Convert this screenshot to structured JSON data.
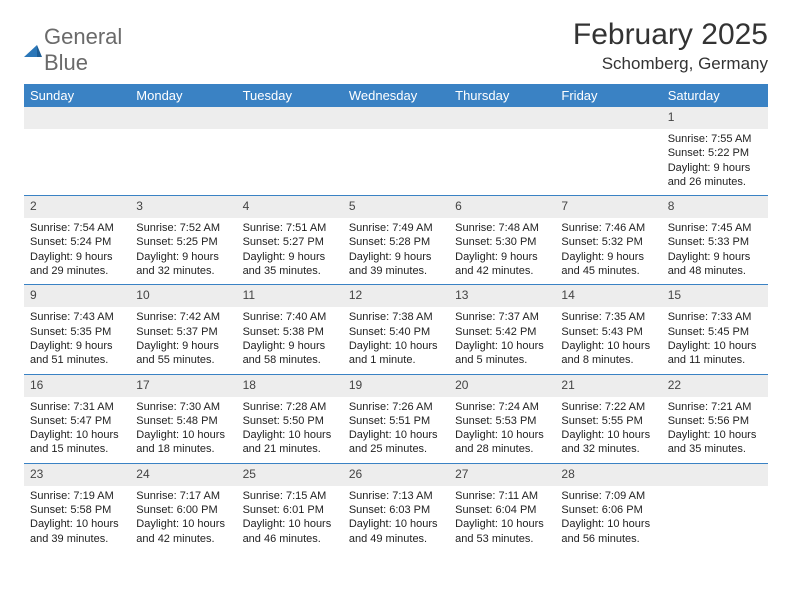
{
  "logo": {
    "text_general": "General",
    "text_blue": "Blue",
    "triangle_color": "#2a76b8"
  },
  "title": "February 2025",
  "subtitle": "Schomberg, Germany",
  "header_bg": "#3a82c4",
  "daynum_bg": "#ededed",
  "border_color": "#3a82c4",
  "days_of_week": [
    "Sunday",
    "Monday",
    "Tuesday",
    "Wednesday",
    "Thursday",
    "Friday",
    "Saturday"
  ],
  "weeks": [
    [
      null,
      null,
      null,
      null,
      null,
      null,
      {
        "n": "1",
        "sr": "Sunrise: 7:55 AM",
        "ss": "Sunset: 5:22 PM",
        "dl": "Daylight: 9 hours and 26 minutes."
      }
    ],
    [
      {
        "n": "2",
        "sr": "Sunrise: 7:54 AM",
        "ss": "Sunset: 5:24 PM",
        "dl": "Daylight: 9 hours and 29 minutes."
      },
      {
        "n": "3",
        "sr": "Sunrise: 7:52 AM",
        "ss": "Sunset: 5:25 PM",
        "dl": "Daylight: 9 hours and 32 minutes."
      },
      {
        "n": "4",
        "sr": "Sunrise: 7:51 AM",
        "ss": "Sunset: 5:27 PM",
        "dl": "Daylight: 9 hours and 35 minutes."
      },
      {
        "n": "5",
        "sr": "Sunrise: 7:49 AM",
        "ss": "Sunset: 5:28 PM",
        "dl": "Daylight: 9 hours and 39 minutes."
      },
      {
        "n": "6",
        "sr": "Sunrise: 7:48 AM",
        "ss": "Sunset: 5:30 PM",
        "dl": "Daylight: 9 hours and 42 minutes."
      },
      {
        "n": "7",
        "sr": "Sunrise: 7:46 AM",
        "ss": "Sunset: 5:32 PM",
        "dl": "Daylight: 9 hours and 45 minutes."
      },
      {
        "n": "8",
        "sr": "Sunrise: 7:45 AM",
        "ss": "Sunset: 5:33 PM",
        "dl": "Daylight: 9 hours and 48 minutes."
      }
    ],
    [
      {
        "n": "9",
        "sr": "Sunrise: 7:43 AM",
        "ss": "Sunset: 5:35 PM",
        "dl": "Daylight: 9 hours and 51 minutes."
      },
      {
        "n": "10",
        "sr": "Sunrise: 7:42 AM",
        "ss": "Sunset: 5:37 PM",
        "dl": "Daylight: 9 hours and 55 minutes."
      },
      {
        "n": "11",
        "sr": "Sunrise: 7:40 AM",
        "ss": "Sunset: 5:38 PM",
        "dl": "Daylight: 9 hours and 58 minutes."
      },
      {
        "n": "12",
        "sr": "Sunrise: 7:38 AM",
        "ss": "Sunset: 5:40 PM",
        "dl": "Daylight: 10 hours and 1 minute."
      },
      {
        "n": "13",
        "sr": "Sunrise: 7:37 AM",
        "ss": "Sunset: 5:42 PM",
        "dl": "Daylight: 10 hours and 5 minutes."
      },
      {
        "n": "14",
        "sr": "Sunrise: 7:35 AM",
        "ss": "Sunset: 5:43 PM",
        "dl": "Daylight: 10 hours and 8 minutes."
      },
      {
        "n": "15",
        "sr": "Sunrise: 7:33 AM",
        "ss": "Sunset: 5:45 PM",
        "dl": "Daylight: 10 hours and 11 minutes."
      }
    ],
    [
      {
        "n": "16",
        "sr": "Sunrise: 7:31 AM",
        "ss": "Sunset: 5:47 PM",
        "dl": "Daylight: 10 hours and 15 minutes."
      },
      {
        "n": "17",
        "sr": "Sunrise: 7:30 AM",
        "ss": "Sunset: 5:48 PM",
        "dl": "Daylight: 10 hours and 18 minutes."
      },
      {
        "n": "18",
        "sr": "Sunrise: 7:28 AM",
        "ss": "Sunset: 5:50 PM",
        "dl": "Daylight: 10 hours and 21 minutes."
      },
      {
        "n": "19",
        "sr": "Sunrise: 7:26 AM",
        "ss": "Sunset: 5:51 PM",
        "dl": "Daylight: 10 hours and 25 minutes."
      },
      {
        "n": "20",
        "sr": "Sunrise: 7:24 AM",
        "ss": "Sunset: 5:53 PM",
        "dl": "Daylight: 10 hours and 28 minutes."
      },
      {
        "n": "21",
        "sr": "Sunrise: 7:22 AM",
        "ss": "Sunset: 5:55 PM",
        "dl": "Daylight: 10 hours and 32 minutes."
      },
      {
        "n": "22",
        "sr": "Sunrise: 7:21 AM",
        "ss": "Sunset: 5:56 PM",
        "dl": "Daylight: 10 hours and 35 minutes."
      }
    ],
    [
      {
        "n": "23",
        "sr": "Sunrise: 7:19 AM",
        "ss": "Sunset: 5:58 PM",
        "dl": "Daylight: 10 hours and 39 minutes."
      },
      {
        "n": "24",
        "sr": "Sunrise: 7:17 AM",
        "ss": "Sunset: 6:00 PM",
        "dl": "Daylight: 10 hours and 42 minutes."
      },
      {
        "n": "25",
        "sr": "Sunrise: 7:15 AM",
        "ss": "Sunset: 6:01 PM",
        "dl": "Daylight: 10 hours and 46 minutes."
      },
      {
        "n": "26",
        "sr": "Sunrise: 7:13 AM",
        "ss": "Sunset: 6:03 PM",
        "dl": "Daylight: 10 hours and 49 minutes."
      },
      {
        "n": "27",
        "sr": "Sunrise: 7:11 AM",
        "ss": "Sunset: 6:04 PM",
        "dl": "Daylight: 10 hours and 53 minutes."
      },
      {
        "n": "28",
        "sr": "Sunrise: 7:09 AM",
        "ss": "Sunset: 6:06 PM",
        "dl": "Daylight: 10 hours and 56 minutes."
      },
      null
    ]
  ]
}
